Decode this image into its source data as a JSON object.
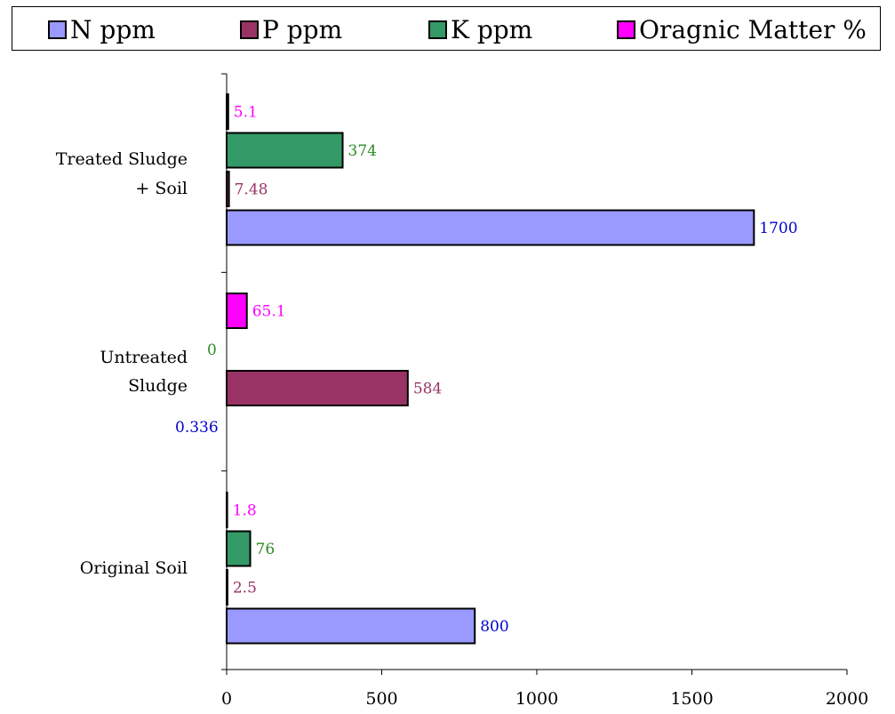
{
  "chart_data": {
    "type": "bar",
    "orientation": "horizontal",
    "categories": [
      "Treated Sludge + Soil",
      "Untreated Sludge",
      "Original Soil"
    ],
    "category_lines": [
      [
        "Treated Sludge",
        "+  Soil"
      ],
      [
        "Untreated",
        "Sludge"
      ],
      [
        "Original Soil"
      ]
    ],
    "series": [
      {
        "name": "N ppm",
        "color": "#9999ff",
        "label_color": "#0000cc",
        "values": [
          1700,
          0.336,
          800
        ],
        "labels": [
          "1700",
          "0.336",
          "800"
        ]
      },
      {
        "name": "P ppm",
        "color": "#993366",
        "label_color": "#993366",
        "values": [
          7.48,
          584,
          2.5
        ],
        "labels": [
          "7.48",
          "584",
          "2.5"
        ]
      },
      {
        "name": "K ppm",
        "color": "#339966",
        "label_color": "#2e8b24",
        "values": [
          374,
          0,
          76
        ],
        "labels": [
          "374",
          "0",
          "76"
        ]
      },
      {
        "name": "Oragnic Matter %",
        "color": "#ff00ff",
        "label_color": "#ff00ff",
        "values": [
          5.1,
          65.1,
          1.8
        ],
        "labels": [
          "5.1",
          "65.1",
          "1.8"
        ]
      }
    ],
    "xlim": [
      0,
      2000
    ],
    "xticks": [
      0,
      500,
      1000,
      1500,
      2000
    ],
    "xtick_labels": [
      "0",
      "500",
      "1000",
      "1500",
      "2000"
    ],
    "title": "",
    "xlabel": "",
    "ylabel": "",
    "grid": false,
    "legend_position": "top"
  }
}
